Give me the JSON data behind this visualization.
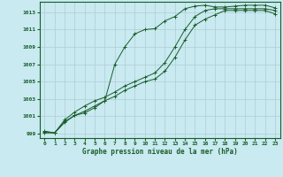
{
  "xlabel": "Graphe pression niveau de la mer (hPa)",
  "xlim": [
    -0.5,
    23.5
  ],
  "ylim": [
    998.5,
    1014.2
  ],
  "yticks": [
    999,
    1001,
    1003,
    1005,
    1007,
    1009,
    1011,
    1013
  ],
  "xticks": [
    0,
    1,
    2,
    3,
    4,
    5,
    6,
    7,
    8,
    9,
    10,
    11,
    12,
    13,
    14,
    15,
    16,
    17,
    18,
    19,
    20,
    21,
    22,
    23
  ],
  "background_color": "#c8eaf0",
  "grid_color": "#b0ccd4",
  "line_color": "#1a5c2a",
  "series": [
    [
      999.2,
      999.1,
      1000.4,
      1001.1,
      1001.4,
      1002.0,
      1002.8,
      1007.0,
      1009.0,
      1010.5,
      1011.0,
      1011.1,
      1012.0,
      1012.5,
      1013.4,
      1013.7,
      1013.8,
      1013.6,
      1013.6,
      1013.7,
      1013.8,
      1013.8,
      1013.8,
      1013.5
    ],
    [
      999.3,
      999.1,
      1000.6,
      1001.5,
      1002.2,
      1002.8,
      1003.2,
      1003.8,
      1004.5,
      1005.0,
      1005.5,
      1006.0,
      1007.2,
      1009.0,
      1011.0,
      1012.5,
      1013.2,
      1013.4,
      1013.4,
      1013.4,
      1013.4,
      1013.4,
      1013.4,
      1013.2
    ],
    [
      999.1,
      999.1,
      1000.3,
      1001.1,
      1001.6,
      1002.2,
      1002.8,
      1003.3,
      1004.0,
      1004.5,
      1005.0,
      1005.3,
      1006.2,
      1007.8,
      1009.8,
      1011.5,
      1012.2,
      1012.7,
      1013.2,
      1013.2,
      1013.2,
      1013.2,
      1013.2,
      1012.8
    ]
  ]
}
